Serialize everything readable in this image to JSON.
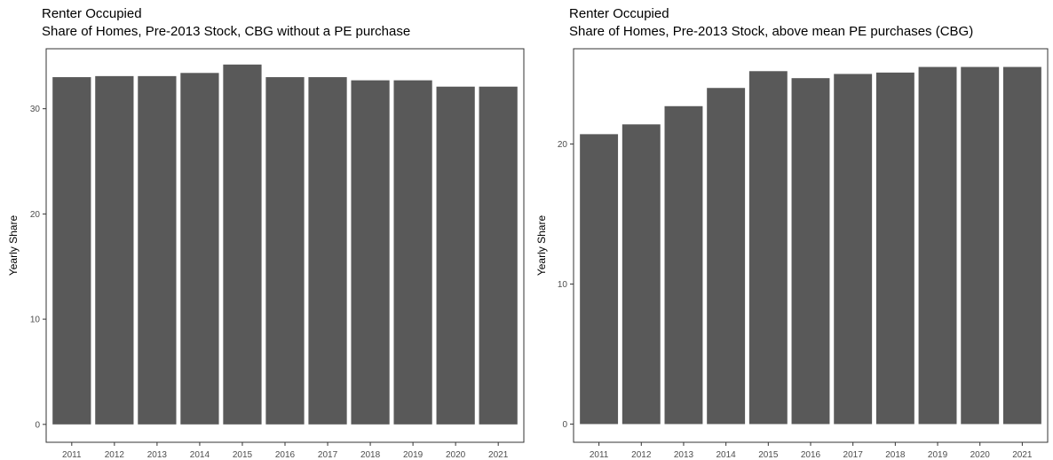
{
  "chart_data": [
    {
      "type": "bar",
      "title": "Renter Occupied",
      "subtitle": "Share of Homes, Pre-2013 Stock, CBG without a PE purchase",
      "xlabel": "",
      "ylabel": "Yearly Share",
      "categories": [
        "2011",
        "2012",
        "2013",
        "2014",
        "2015",
        "2016",
        "2017",
        "2018",
        "2019",
        "2020",
        "2021"
      ],
      "values": [
        33.0,
        33.1,
        33.1,
        33.4,
        34.2,
        33.0,
        33.0,
        32.7,
        32.7,
        32.1,
        32.1
      ],
      "ylim": [
        -1.7,
        35.7
      ],
      "yticks": [
        0,
        10,
        20,
        30
      ],
      "bar_color": "#595959",
      "grid": false,
      "panel_border_color": "#333333"
    },
    {
      "type": "bar",
      "title": "Renter Occupied",
      "subtitle": "Share of Homes, Pre-2013 Stock, above mean PE purchases (CBG)",
      "xlabel": "",
      "ylabel": "Yearly Share",
      "categories": [
        "2011",
        "2012",
        "2013",
        "2014",
        "2015",
        "2016",
        "2017",
        "2018",
        "2019",
        "2020",
        "2021"
      ],
      "values": [
        20.7,
        21.4,
        22.7,
        24.0,
        25.2,
        24.7,
        25.0,
        25.1,
        25.5,
        25.5,
        25.5
      ],
      "ylim": [
        -1.3,
        26.8
      ],
      "yticks": [
        0,
        10,
        20
      ],
      "bar_color": "#595959",
      "grid": false,
      "panel_border_color": "#333333"
    }
  ]
}
